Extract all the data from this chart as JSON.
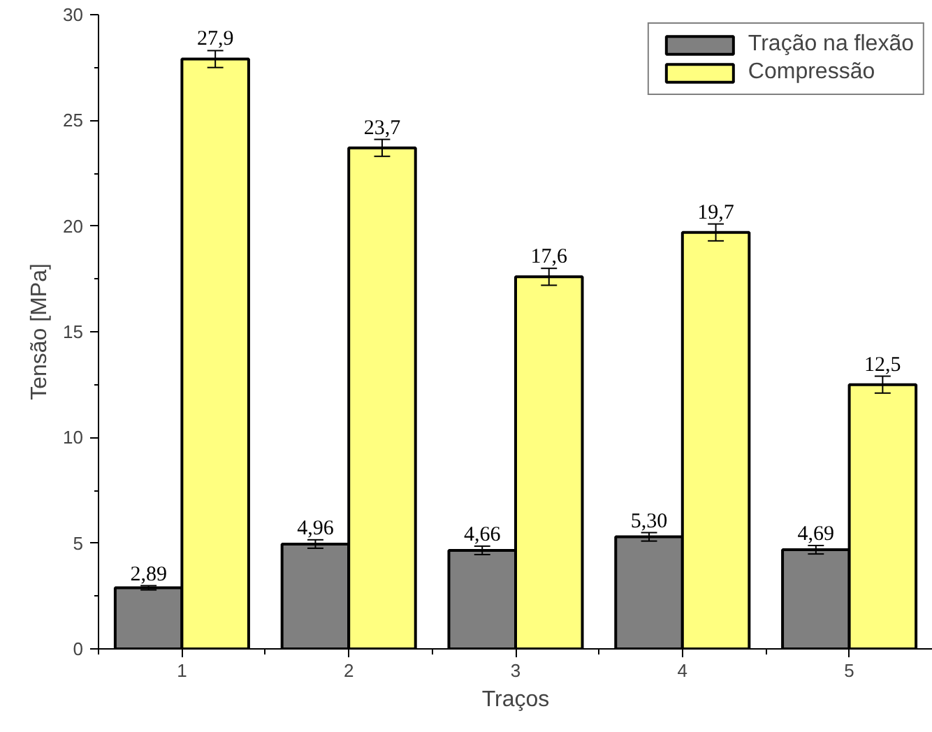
{
  "chart_data": {
    "type": "bar",
    "categories": [
      "1",
      "2",
      "3",
      "4",
      "5"
    ],
    "xlabel": "Traços",
    "ylabel": "Tensão [MPa]",
    "ylim": [
      0,
      30
    ],
    "yticks": [
      0,
      5,
      10,
      15,
      20,
      25,
      30
    ],
    "grid": false,
    "legend": "top right",
    "series": [
      {
        "name": "Tração na flexão",
        "color": "#808080",
        "values": [
          2.89,
          4.96,
          4.66,
          5.3,
          4.69
        ],
        "errors": [
          0.1,
          0.2,
          0.2,
          0.2,
          0.2
        ],
        "value_labels": [
          "2,89",
          "4,96",
          "4,66",
          "5,30",
          "4,69"
        ]
      },
      {
        "name": "Compressão",
        "color": "#ffff80",
        "values": [
          27.9,
          23.7,
          17.6,
          19.7,
          12.5
        ],
        "errors": [
          0.4,
          0.4,
          0.4,
          0.4,
          0.4
        ],
        "value_labels": [
          "27,9",
          "23,7",
          "17,6",
          "19,7",
          "12,5"
        ]
      }
    ]
  }
}
